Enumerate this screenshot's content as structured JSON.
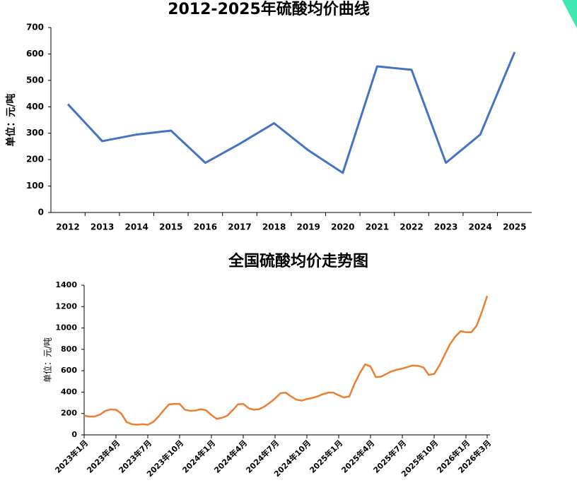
{
  "chart_data": [
    {
      "type": "line",
      "title": "2012-2025年硫酸均价曲线",
      "y_label": "单位：元/吨",
      "categories": [
        "2012",
        "2013",
        "2014",
        "2015",
        "2016",
        "2017",
        "2018",
        "2019",
        "2020",
        "2021",
        "2022",
        "2023",
        "2024",
        "2025"
      ],
      "series": [
        {
          "name": "硫酸均价",
          "color": "#4472c4",
          "values": [
            410,
            270,
            295,
            310,
            188,
            260,
            338,
            235,
            150,
            553,
            540,
            188,
            295,
            607
          ]
        }
      ],
      "ylim": [
        0,
        700
      ],
      "yticks": [
        0,
        100,
        200,
        300,
        400,
        500,
        600,
        700
      ]
    },
    {
      "type": "line",
      "title": "全国硫酸均价走势图",
      "y_label": "单位：元/吨",
      "categories": [
        "2023年1月",
        null,
        null,
        null,
        null,
        null,
        "2023年4月",
        null,
        null,
        null,
        null,
        null,
        "2023年7月",
        null,
        null,
        null,
        null,
        null,
        "2023年10月",
        null,
        null,
        null,
        null,
        null,
        "2024年1月",
        null,
        null,
        null,
        null,
        null,
        "2024年4月",
        null,
        null,
        null,
        null,
        null,
        "2024年7月",
        null,
        null,
        null,
        null,
        null,
        "2024年10月",
        null,
        null,
        null,
        null,
        null,
        "2025年1月",
        null,
        null,
        null,
        null,
        null,
        "2025年4月",
        null,
        null,
        null,
        null,
        null,
        "2025年7月",
        null,
        null,
        null,
        null,
        null,
        "2025年10月",
        null,
        null,
        null,
        null,
        null,
        "2026年1月",
        null,
        null,
        null,
        "2026年3月"
      ],
      "series": [
        {
          "name": "全国硫酸均价",
          "color": "#ed7d31",
          "values": [
            180,
            172,
            172,
            190,
            225,
            238,
            235,
            200,
            120,
            100,
            95,
            100,
            95,
            120,
            170,
            230,
            285,
            290,
            290,
            235,
            225,
            228,
            240,
            230,
            185,
            150,
            160,
            180,
            230,
            285,
            290,
            250,
            235,
            240,
            265,
            300,
            340,
            390,
            395,
            360,
            330,
            320,
            335,
            345,
            360,
            380,
            395,
            395,
            370,
            350,
            360,
            480,
            580,
            660,
            640,
            540,
            545,
            570,
            595,
            610,
            620,
            635,
            650,
            645,
            630,
            560,
            570,
            650,
            750,
            850,
            920,
            970,
            960,
            960,
            1020,
            1150,
            1300
          ]
        }
      ],
      "ylim": [
        0,
        1400
      ],
      "yticks": [
        0,
        200,
        400,
        600,
        800,
        1000,
        1200,
        1400
      ]
    }
  ]
}
